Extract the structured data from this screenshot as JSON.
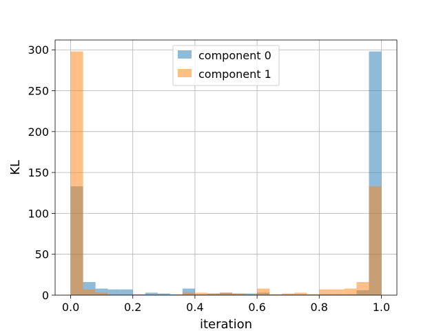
{
  "chart_data": {
    "type": "histogram",
    "title": "",
    "xlabel": "iteration",
    "ylabel": "KL",
    "xlim": [
      -0.05,
      1.05
    ],
    "ylim": [
      0,
      312
    ],
    "xticks": [
      0.0,
      0.2,
      0.4,
      0.6,
      0.8,
      1.0
    ],
    "xtick_labels": [
      "0.0",
      "0.2",
      "0.4",
      "0.6",
      "0.8",
      "1.0"
    ],
    "yticks": [
      0,
      50,
      100,
      150,
      200,
      250,
      300
    ],
    "ytick_labels": [
      "0",
      "50",
      "100",
      "150",
      "200",
      "250",
      "300"
    ],
    "grid": true,
    "legend_position": "top-center",
    "bins": [
      0.0,
      0.04,
      0.08,
      0.12,
      0.16,
      0.2,
      0.24,
      0.28,
      0.32,
      0.36,
      0.4,
      0.44,
      0.48,
      0.52,
      0.56,
      0.6,
      0.64,
      0.68,
      0.72,
      0.76,
      0.8,
      0.84,
      0.88,
      0.92,
      0.96,
      1.0
    ],
    "series": [
      {
        "name": "component 0",
        "color": "#1f77b4",
        "counts": [
          133,
          16,
          8,
          7,
          7,
          1,
          3,
          2,
          1,
          8,
          1,
          2,
          3,
          2,
          2,
          3,
          1,
          1,
          1,
          1,
          1,
          1,
          1,
          6,
          298
        ]
      },
      {
        "name": "component 1",
        "color": "#ff7f0e",
        "counts": [
          298,
          7,
          3,
          1,
          1,
          1,
          1,
          1,
          1,
          3,
          3,
          2,
          3,
          2,
          1,
          8,
          1,
          2,
          3,
          1,
          7,
          7,
          8,
          16,
          133
        ]
      }
    ]
  }
}
